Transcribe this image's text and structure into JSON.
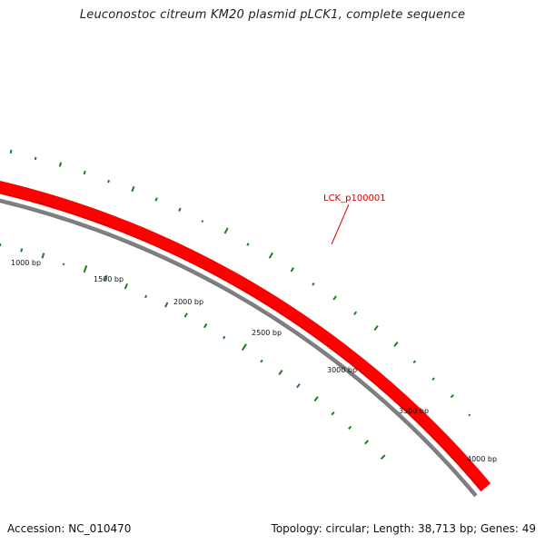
{
  "title": "Leuconostoc citreum KM20 plasmid pLCK1, complete sequence",
  "footer": {
    "accession": "Accession: NC_010470",
    "summary": "Topology: circular; Length: 38,713 bp; Genes: 49"
  },
  "colors": {
    "gene_strand": "#ff0000",
    "gene_strand_dark": "#cc0000",
    "backbone": "#808080",
    "gc_marks": "#1e7d1e",
    "gene_label": "#d40000"
  },
  "genes": [
    {
      "id": "LCK_p100001",
      "label": "LCK_p100001",
      "start_bp": 0,
      "end_bp": 4300,
      "strand": "+"
    }
  ],
  "bp_ticks": [
    {
      "bp": 1000,
      "label": "1000 bp"
    },
    {
      "bp": 1500,
      "label": "1500 bp"
    },
    {
      "bp": 2000,
      "label": "2000 bp"
    },
    {
      "bp": 2500,
      "label": "2500 bp"
    },
    {
      "bp": 3000,
      "label": "3000 bp"
    },
    {
      "bp": 3500,
      "label": "3500 bp"
    },
    {
      "bp": 4000,
      "label": "4000 bp"
    }
  ]
}
